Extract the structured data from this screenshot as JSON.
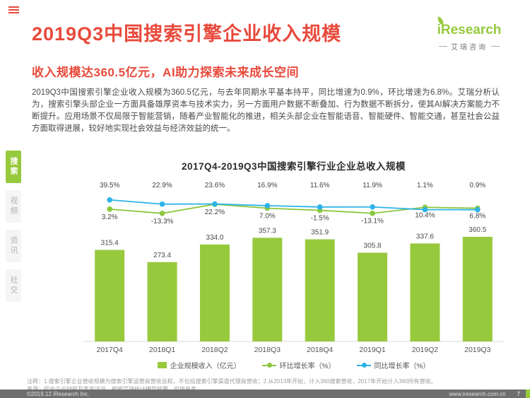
{
  "theme": {
    "red": "#e84a3c",
    "green": "#97c93d",
    "blue": "#2eb3e8",
    "footer_bg": "#6d6e70"
  },
  "header": {
    "title": "2019Q3中国搜索引擎企业收入规模",
    "subtitle": "收入规模达360.5亿元，AI助力探索未来成长空间"
  },
  "logo": {
    "brand": "iResearch",
    "cn": "艾瑞咨询"
  },
  "intro": "2019Q3中国搜索引擎企业收入规模为360.5亿元，与去年同期水平基本持平，同比增速为0.9%，环比增速为6.8%。艾瑞分析认为，搜索引擎头部企业一方面具备雄厚资本与技术实力，另一方面用户数据不断叠加、行为数据不断拆分，使其AI解决方案能力不断提升。应用场景不仅局限于智能营销，随着产业智能化的推进，相关头部企业在智能语音、智能硬件、智能交通，甚至社会公益方面取得进展，较好地实现社会效益与经济效益的统一。",
  "sidebar": {
    "items": [
      {
        "label": "搜索",
        "active": true
      },
      {
        "label": "视频",
        "active": false
      },
      {
        "label": "资讯",
        "active": false
      },
      {
        "label": "社交",
        "active": false
      }
    ]
  },
  "chart_data": {
    "type": "bar",
    "title": "2017Q4-2019Q3中国搜索引擎行业企业总收入规模",
    "categories": [
      "2017Q4",
      "2018Q1",
      "2018Q2",
      "2018Q3",
      "2018Q4",
      "2019Q1",
      "2019Q2",
      "2019Q3"
    ],
    "series": [
      {
        "name": "企业规模收入（亿元）",
        "type": "bar",
        "color": "#97c93d",
        "values": [
          315.4,
          273.4,
          334.0,
          357.3,
          351.9,
          305.8,
          337.6,
          360.5
        ]
      },
      {
        "name": "环比增长率（%）",
        "type": "line",
        "color": "#8cc63f",
        "label_row": "below",
        "values": [
          3.2,
          -13.3,
          22.2,
          7.0,
          -1.5,
          -13.1,
          10.4,
          6.8
        ]
      },
      {
        "name": "同比增长率（%）",
        "type": "line",
        "color": "#2eb3e8",
        "label_row": "top",
        "values": [
          39.5,
          22.9,
          23.6,
          16.9,
          11.6,
          11.9,
          1.1,
          0.9
        ]
      }
    ],
    "legend_position": "bottom",
    "grid": false,
    "bar_axis_unit": "亿元"
  },
  "notes": {
    "annotation": "注释：1.搜索引擎企业营收规模为搜索引擎运营商营收总和，不包括搜索引擎渠道代理商营收；2.从2013年开始，计入360搜索营收，2017年开始计入360所有营收。",
    "source": "来源：综合企业财报及专家访谈，根据艾瑞统计模型核算，仅供参考。"
  },
  "footer": {
    "copyright": "©2019.12 iResearch Inc.",
    "url": "www.iresearch.com.cn",
    "page": "7"
  }
}
